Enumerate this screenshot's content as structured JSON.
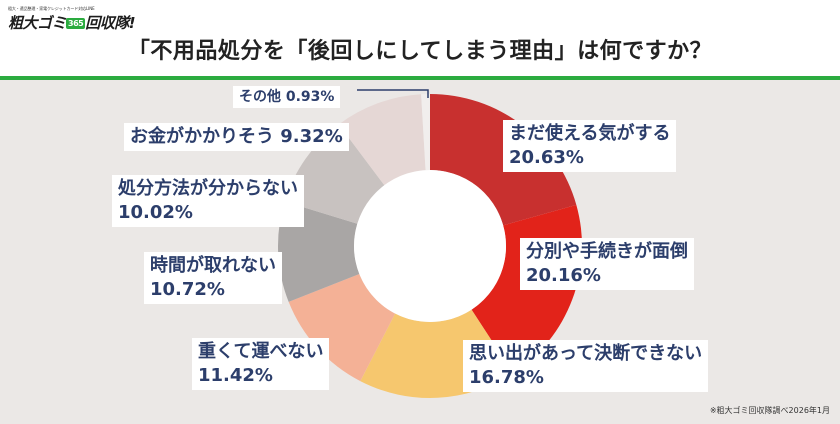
{
  "header": {
    "logo_tagline": "粗大・遺品整理・家電クレジットカード対応LINE",
    "logo_name": "粗大ゴミ",
    "logo_badge": "365",
    "logo_name_suffix": "回収隊!",
    "title": "「不用品処分を「後回しにしてしまう理由」は何ですか？"
  },
  "footnote": "※粗大ゴミ回収隊調べ2026年1月",
  "colors": {
    "accent_green": "#2bab3f",
    "label_text": "#2c3e6b",
    "background": "#ebe8e6"
  },
  "chart_data": {
    "type": "pie",
    "donut": true,
    "title": "「不用品処分を「後回しにしてしまう理由」は何ですか？",
    "slices": [
      {
        "label": "まだ使える気がする",
        "value": 20.63,
        "display": "20.63%",
        "color": "#c8302f"
      },
      {
        "label": "分別や手続きが面倒",
        "value": 20.16,
        "display": "20.16%",
        "color": "#e2231a"
      },
      {
        "label": "思い出があって決断できない",
        "value": 16.78,
        "display": "16.78%",
        "color": "#f6c76e"
      },
      {
        "label": "重くて運べない",
        "value": 11.42,
        "display": "11.42%",
        "color": "#f4b196"
      },
      {
        "label": "時間が取れない",
        "value": 10.72,
        "display": "10.72%",
        "color": "#a9a6a5"
      },
      {
        "label": "処分方法が分からない",
        "value": 10.02,
        "display": "10.02%",
        "color": "#c8c2c0"
      },
      {
        "label": "お金がかかりそう",
        "value": 9.32,
        "display": "9.32%",
        "color": "#e5d7d5"
      },
      {
        "label": "その他",
        "value": 0.93,
        "display": "0.93%",
        "color": "#f1eeed"
      }
    ]
  }
}
